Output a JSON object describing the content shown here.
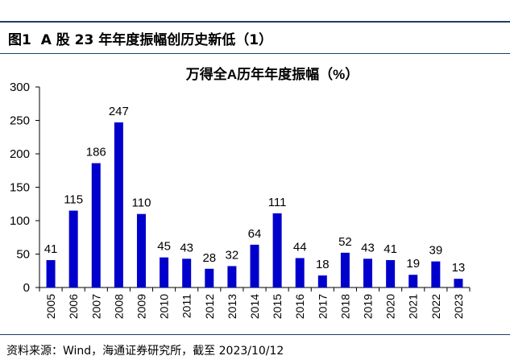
{
  "figure_label": "图1",
  "figure_title": "A 股 23 年年度振幅创历史新低（1）",
  "source_note": "资料来源：Wind，海通证券研究所，截至 2023/10/12",
  "chart_data": {
    "type": "bar",
    "title": "万得全A历年年度振幅（%）",
    "xlabel": "",
    "ylabel": "",
    "categories": [
      "2005",
      "2006",
      "2007",
      "2008",
      "2009",
      "2010",
      "2011",
      "2012",
      "2013",
      "2014",
      "2015",
      "2016",
      "2017",
      "2018",
      "2019",
      "2020",
      "2021",
      "2022",
      "2023"
    ],
    "values": [
      41,
      115,
      186,
      247,
      110,
      45,
      43,
      28,
      32,
      64,
      111,
      44,
      18,
      52,
      43,
      41,
      19,
      39,
      13
    ],
    "ylim": [
      0,
      300
    ],
    "yticks": [
      0,
      50,
      100,
      150,
      200,
      250,
      300
    ],
    "bar_color": "#0000cc",
    "grid": false,
    "data_labels": true
  }
}
